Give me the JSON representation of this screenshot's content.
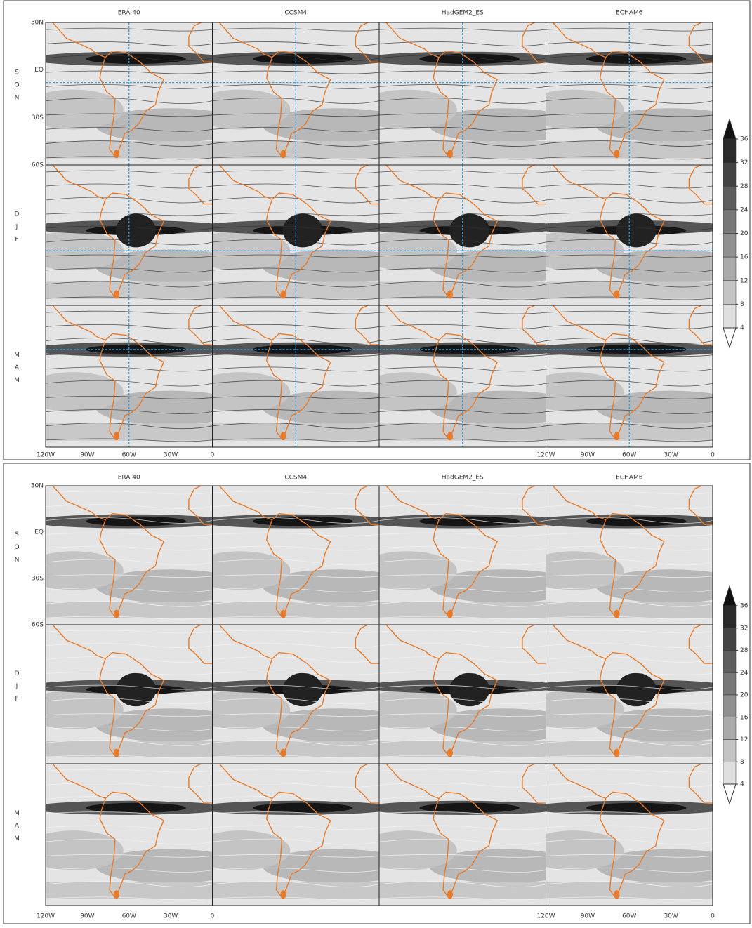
{
  "columns": [
    "ERA 40",
    "CCSM4",
    "HadGEM2_ES",
    "ECHAM6"
  ],
  "rows": [
    [
      "S",
      "O",
      "N"
    ],
    [
      "D",
      "J",
      "F"
    ],
    [
      "M",
      "A",
      "M"
    ]
  ],
  "lat_labels": [
    "30N",
    "EQ",
    "30S",
    "60S"
  ],
  "lon_labels": [
    "120W",
    "90W",
    "60W",
    "30W",
    "0"
  ],
  "colorbar_ticks": [
    36,
    32,
    28,
    24,
    20,
    16,
    12,
    8,
    4
  ]
}
